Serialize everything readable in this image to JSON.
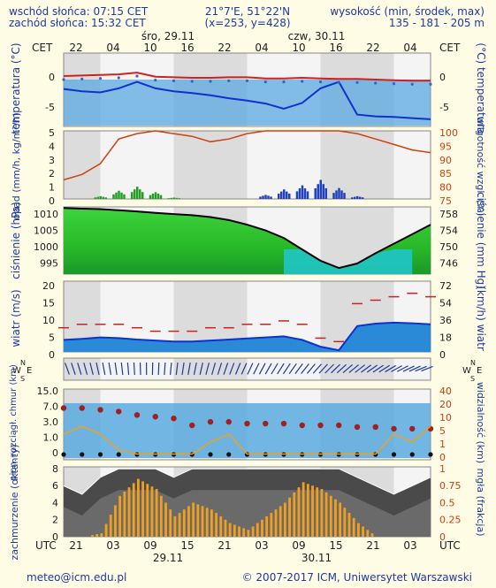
{
  "header": {
    "sunrise": "wschód słońca: 07:15 CET",
    "sunset": "zachód słońca: 15:32 CET",
    "coords": "21°7'E, 51°22'N",
    "grid": "(x=253, y=428)",
    "elevation_label": "wysokość (min, środek, max)",
    "elevation_values": "135 - 181 - 205 m"
  },
  "timeline": {
    "cet_label": "CET",
    "utc_label": "UTC",
    "cet_ticks": [
      "22",
      "04",
      "10",
      "16",
      "22",
      "04",
      "10",
      "16",
      "22",
      "04"
    ],
    "utc_ticks": [
      "21",
      "03",
      "09",
      "15",
      "21",
      "03",
      "09",
      "15",
      "21",
      "03"
    ],
    "day1_top": "śro, 29.11",
    "day2_top": "czw, 30.11",
    "day1_bottom": "29.11",
    "day2_bottom": "30.11"
  },
  "panels": {
    "temp": {
      "left": "temperatura (°C)",
      "right": "(°C) temperatura",
      "ticks": [
        "0",
        "-5"
      ]
    },
    "precip": {
      "left": "opad (mm/h, kg/m²/h)",
      "right": "wilgotność wzgl. (%)",
      "ticks_left": [
        "5",
        "4",
        "3",
        "2",
        "1",
        "0"
      ],
      "ticks_right": [
        "100",
        "95",
        "90",
        "85",
        "80",
        "75"
      ]
    },
    "pressure": {
      "left": "ciśnienie (hPa)",
      "right": "ciśnienie (mm Hg)",
      "ticks_left": [
        "1010",
        "1005",
        "1000",
        "995"
      ],
      "ticks_right": [
        "758",
        "754",
        "750",
        "746"
      ]
    },
    "wind": {
      "left": "wiatr (m/s)",
      "right": "(km/h) wiatr",
      "ticks_left": [
        "20",
        "15",
        "10",
        "5",
        "0"
      ],
      "ticks_right": [
        "72",
        "54",
        "36",
        "18",
        "0"
      ]
    },
    "dir": {
      "compass": "W E N S"
    },
    "visibility": {
      "left": "pion. rozciągł. chmur (km)",
      "right": "widzialność (km)",
      "ticks_left": [
        "15.0",
        "7.0",
        "3.0",
        "1.0",
        "0"
      ],
      "ticks_right": [
        "40",
        "20",
        "10",
        "5",
        "1",
        "0"
      ]
    },
    "clouds": {
      "left": "zachmurzenie (oktanty)",
      "right": "mgła (frakcja)",
      "ticks_left": [
        "8",
        "6",
        "4",
        "2",
        "0"
      ],
      "ticks_right": [
        "1",
        "0.75",
        "0.5",
        "0.25",
        "0"
      ]
    }
  },
  "footer": {
    "email": "meteo@icm.edu.pl",
    "copyright": "© 2007-2017 ICM, Uniwersytet Warszawski"
  },
  "colors": {
    "temp_line": "#d02020",
    "dew_line": "#1030d0",
    "humidity": "#d04010",
    "rain": "#22a022",
    "snow": "#2040c0",
    "pressure_high": "#22b822",
    "pressure_low": "#20c0d0",
    "fog_bars": "#f0a020",
    "sky": "#5aaae0"
  },
  "chart_data": [
    {
      "type": "line",
      "title": "temperatura",
      "ylabel": "temperatura (°C)",
      "ylim": [
        -7,
        2
      ],
      "x": [
        0,
        3,
        6,
        9,
        12,
        15,
        18,
        21,
        24,
        27,
        30,
        33,
        36,
        39,
        42,
        45,
        48,
        51,
        54,
        57,
        60
      ],
      "series": [
        {
          "name": "temperatura",
          "values": [
            0.6,
            0.7,
            0.8,
            0.9,
            1.2,
            0.5,
            0.4,
            0.3,
            0.3,
            0.4,
            0.4,
            0.2,
            0.2,
            0.3,
            0.2,
            0.1,
            0.1,
            0.0,
            -0.1,
            -0.2,
            -0.2
          ]
        },
        {
          "name": "punkt rosy",
          "values": [
            -1.6,
            -2.0,
            -2.2,
            -1.5,
            -0.4,
            -1.5,
            -2.0,
            -2.3,
            -2.7,
            -3.2,
            -3.6,
            -4.1,
            -5.0,
            -4.0,
            -1.5,
            -0.4,
            -6.0,
            -6.3,
            -6.4,
            -6.6,
            -6.8
          ]
        }
      ]
    },
    {
      "type": "bar",
      "title": "opad",
      "ylabel": "opad (mm/h, kg/m²/h)",
      "ylim": [
        0,
        5
      ],
      "x": [
        0,
        3,
        6,
        9,
        12,
        15,
        18,
        21,
        24,
        27,
        30,
        33,
        36,
        39,
        42,
        45,
        48,
        51,
        54,
        57,
        60
      ],
      "series": [
        {
          "name": "opad",
          "values": [
            0,
            0,
            0.2,
            0.6,
            0.9,
            0.5,
            0.1,
            0,
            0,
            0,
            0,
            0.3,
            0.7,
            1.0,
            1.4,
            0.8,
            0.2,
            0,
            0,
            0,
            0
          ]
        },
        {
          "name": "wilgotność wzgl.",
          "values": [
            82,
            84,
            88,
            97,
            99,
            100,
            99,
            98,
            96,
            97,
            99,
            100,
            100,
            100,
            100,
            100,
            99,
            97,
            95,
            93,
            92
          ]
        }
      ]
    },
    {
      "type": "area",
      "title": "ciśnienie",
      "ylabel": "ciśnienie (hPa)",
      "ylim": [
        993,
        1011
      ],
      "x": [
        0,
        3,
        6,
        9,
        12,
        15,
        18,
        21,
        24,
        27,
        30,
        33,
        36,
        39,
        42,
        45,
        48,
        51,
        54,
        57,
        60
      ],
      "series": [
        {
          "name": "ciśnienie",
          "values": [
            1010.4,
            1010.2,
            1010.1,
            1009.8,
            1009.5,
            1009.1,
            1008.8,
            1008.5,
            1008.0,
            1007.2,
            1006.0,
            1004.5,
            1002.5,
            999.5,
            996.5,
            994.6,
            995.8,
            998.5,
            1001.0,
            1003.5,
            1006.0
          ]
        }
      ]
    },
    {
      "type": "line",
      "title": "wiatr",
      "ylabel": "wiatr (m/s)",
      "ylim": [
        0,
        20
      ],
      "x": [
        0,
        3,
        6,
        9,
        12,
        15,
        18,
        21,
        24,
        27,
        30,
        33,
        36,
        39,
        42,
        45,
        48,
        51,
        54,
        57,
        60
      ],
      "series": [
        {
          "name": "wiatr",
          "values": [
            3.5,
            3.8,
            4.2,
            4.0,
            3.6,
            3.3,
            3.0,
            3.0,
            3.3,
            3.6,
            3.9,
            4.2,
            4.5,
            3.5,
            1.5,
            0.5,
            7.5,
            8.2,
            8.5,
            8.3,
            8.0
          ]
        },
        {
          "name": "porywy",
          "values": [
            7,
            8,
            8,
            8,
            7,
            6,
            6,
            6,
            7,
            7,
            8,
            8,
            9,
            8,
            4,
            3,
            14,
            15,
            16,
            17,
            16
          ]
        }
      ]
    },
    {
      "type": "scatter",
      "title": "widzialność",
      "ylabel": "widzialność (km)",
      "ylim": [
        0,
        40
      ],
      "x": [
        0,
        3,
        6,
        9,
        12,
        15,
        18,
        21,
        24,
        27,
        30,
        33,
        36,
        39,
        42,
        45,
        48,
        51,
        54,
        57,
        60
      ],
      "series": [
        {
          "name": "widzialność",
          "values": [
            30,
            30,
            29,
            28,
            26,
            25,
            24,
            20,
            22,
            22,
            21,
            21,
            21,
            20,
            20,
            20,
            19,
            19,
            18,
            18,
            18
          ]
        }
      ]
    },
    {
      "type": "area",
      "title": "zachmurzenie",
      "ylabel": "zachmurzenie (oktanty)",
      "ylim": [
        0,
        8
      ],
      "x": [
        0,
        3,
        6,
        9,
        12,
        15,
        18,
        21,
        24,
        27,
        30,
        33,
        36,
        39,
        42,
        45,
        48,
        51,
        54,
        57,
        60
      ],
      "series": [
        {
          "name": "zachmurzenie",
          "values": [
            6,
            5,
            7,
            8,
            8,
            8,
            7,
            8,
            8,
            8,
            8,
            8,
            8,
            8,
            8,
            8,
            7,
            6,
            5,
            6,
            7
          ]
        },
        {
          "name": "mgła",
          "values": [
            0,
            0,
            0.05,
            0.6,
            0.85,
            0.7,
            0.3,
            0.5,
            0.4,
            0.2,
            0.1,
            0.3,
            0.5,
            0.8,
            0.7,
            0.5,
            0.2,
            0,
            0,
            0,
            0
          ]
        }
      ]
    }
  ]
}
